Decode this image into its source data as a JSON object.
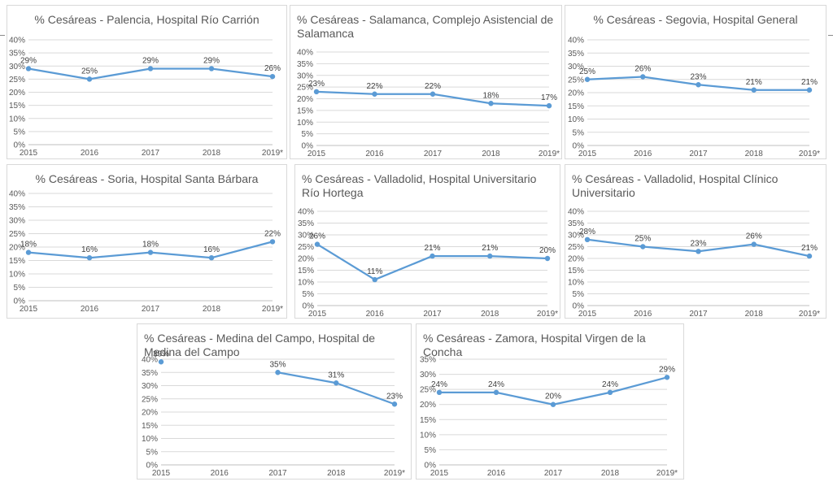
{
  "chart_data": [
    {
      "type": "line",
      "title": "% Cesáreas - Palencia, Hospital Río Carrión",
      "categories": [
        "2015",
        "2016",
        "2017",
        "2018",
        "2019*"
      ],
      "values": [
        29,
        25,
        29,
        29,
        26
      ],
      "data_labels": [
        "29%",
        "25%",
        "29%",
        "29%",
        "26%"
      ],
      "yticks": [
        "0%",
        "5%",
        "10%",
        "15%",
        "20%",
        "25%",
        "30%",
        "35%",
        "40%"
      ],
      "ylim": [
        0,
        40
      ],
      "grid": true,
      "color": "#5b9bd5"
    },
    {
      "type": "line",
      "title": "% Cesáreas - Salamanca, Complejo Asistencial de Salamanca",
      "categories": [
        "2015",
        "2016",
        "2017",
        "2018",
        "2019*"
      ],
      "values": [
        23,
        22,
        22,
        18,
        17
      ],
      "data_labels": [
        "23%",
        "22%",
        "22%",
        "18%",
        "17%"
      ],
      "yticks": [
        "0%",
        "5%",
        "10%",
        "15%",
        "20%",
        "25%",
        "30%",
        "35%",
        "40%"
      ],
      "ylim": [
        0,
        40
      ],
      "grid": true,
      "color": "#5b9bd5"
    },
    {
      "type": "line",
      "title": "% Cesáreas - Segovia, Hospital General",
      "categories": [
        "2015",
        "2016",
        "2017",
        "2018",
        "2019*"
      ],
      "values": [
        25,
        26,
        23,
        21,
        21
      ],
      "data_labels": [
        "25%",
        "26%",
        "23%",
        "21%",
        "21%"
      ],
      "yticks": [
        "0%",
        "5%",
        "10%",
        "15%",
        "20%",
        "25%",
        "30%",
        "35%",
        "40%"
      ],
      "ylim": [
        0,
        40
      ],
      "grid": true,
      "color": "#5b9bd5"
    },
    {
      "type": "line",
      "title": "% Cesáreas - Soria, Hospital Santa Bárbara",
      "categories": [
        "2015",
        "2016",
        "2017",
        "2018",
        "2019*"
      ],
      "values": [
        18,
        16,
        18,
        16,
        22
      ],
      "data_labels": [
        "18%",
        "16%",
        "18%",
        "16%",
        "22%"
      ],
      "yticks": [
        "0%",
        "5%",
        "10%",
        "15%",
        "20%",
        "25%",
        "30%",
        "35%",
        "40%"
      ],
      "ylim": [
        0,
        40
      ],
      "grid": true,
      "color": "#5b9bd5"
    },
    {
      "type": "line",
      "title": "% Cesáreas - Valladolid, Hospital Universitario Río Hortega",
      "categories": [
        "2015",
        "2016",
        "2017",
        "2018",
        "2019*"
      ],
      "values": [
        26,
        11,
        21,
        21,
        20
      ],
      "data_labels": [
        "26%",
        "11%",
        "21%",
        "21%",
        "20%"
      ],
      "yticks": [
        "0%",
        "5%",
        "10%",
        "15%",
        "20%",
        "25%",
        "30%",
        "35%",
        "40%"
      ],
      "ylim": [
        0,
        40
      ],
      "grid": true,
      "color": "#5b9bd5"
    },
    {
      "type": "line",
      "title": "% Cesáreas - Valladolid, Hospital Clínico Universitario",
      "categories": [
        "2015",
        "2016",
        "2017",
        "2018",
        "2019*"
      ],
      "values": [
        28,
        25,
        23,
        26,
        21
      ],
      "data_labels": [
        "28%",
        "25%",
        "23%",
        "26%",
        "21%"
      ],
      "yticks": [
        "0%",
        "5%",
        "10%",
        "15%",
        "20%",
        "25%",
        "30%",
        "35%",
        "40%"
      ],
      "ylim": [
        0,
        40
      ],
      "grid": true,
      "color": "#5b9bd5"
    },
    {
      "type": "line",
      "title": "% Cesáreas - Medina del Campo, Hospital de Medina del Campo",
      "categories": [
        "2015",
        "2016",
        "2017",
        "2018",
        "2019*"
      ],
      "values": [
        39,
        null,
        35,
        31,
        23
      ],
      "data_labels": [
        "39%",
        "",
        "35%",
        "31%",
        "23%"
      ],
      "yticks": [
        "0%",
        "5%",
        "10%",
        "15%",
        "20%",
        "25%",
        "30%",
        "35%",
        "40%"
      ],
      "ylim": [
        0,
        40
      ],
      "grid": true,
      "color": "#5b9bd5"
    },
    {
      "type": "line",
      "title": "% Cesáreas - Zamora, Hospital Virgen de la Concha",
      "categories": [
        "2015",
        "2016",
        "2017",
        "2018",
        "2019*"
      ],
      "values": [
        24,
        24,
        20,
        24,
        29
      ],
      "data_labels": [
        "24%",
        "24%",
        "20%",
        "24%",
        "29%"
      ],
      "yticks": [
        "0%",
        "5%",
        "10%",
        "15%",
        "20%",
        "25%",
        "30%",
        "35%"
      ],
      "ylim": [
        0,
        35
      ],
      "grid": true,
      "color": "#5b9bd5"
    }
  ]
}
